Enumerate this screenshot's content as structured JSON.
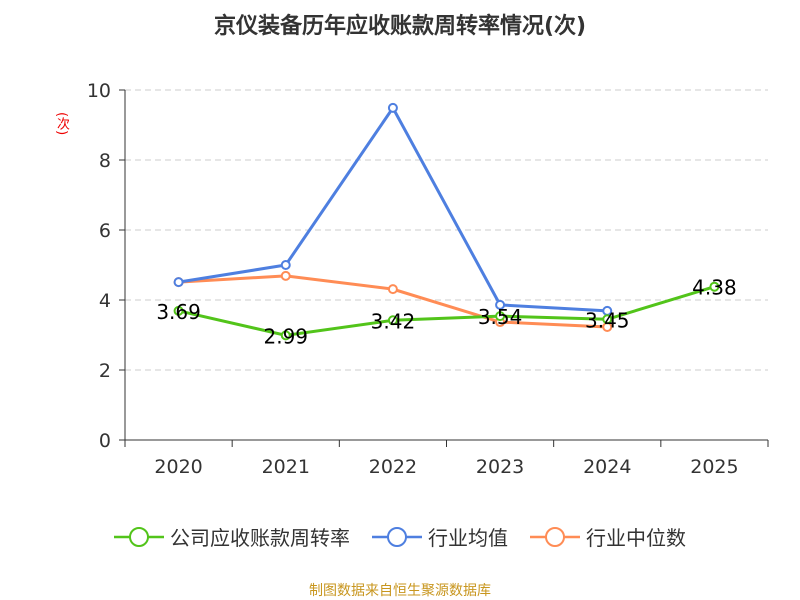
{
  "chart_data": {
    "type": "line",
    "title": "京仪装备历年应收账款周转率情况(次)",
    "ylabel": "(次)",
    "categories": [
      "2020",
      "2021",
      "2022",
      "2023",
      "2024",
      "2025"
    ],
    "ylim": [
      0,
      10
    ],
    "yticks": [
      0,
      2,
      4,
      6,
      8,
      10
    ],
    "grid": true,
    "legend_position": "bottom",
    "series": [
      {
        "name": "公司应收账款周转率",
        "color": "#52c41a",
        "values": [
          3.69,
          2.99,
          3.42,
          3.54,
          3.45,
          4.38
        ],
        "labels": [
          "3.69",
          "2.99",
          "3.42",
          "3.54",
          "3.45",
          "4.38"
        ]
      },
      {
        "name": "行业均值",
        "color": "#4e7fe0",
        "values": [
          4.51,
          5.0,
          9.49,
          3.86,
          3.69,
          null
        ]
      },
      {
        "name": "行业中位数",
        "color": "#ff8c55",
        "values": [
          4.51,
          4.69,
          4.31,
          3.37,
          3.23,
          null
        ]
      }
    ]
  },
  "source": "制图数据来自恒生聚源数据库"
}
